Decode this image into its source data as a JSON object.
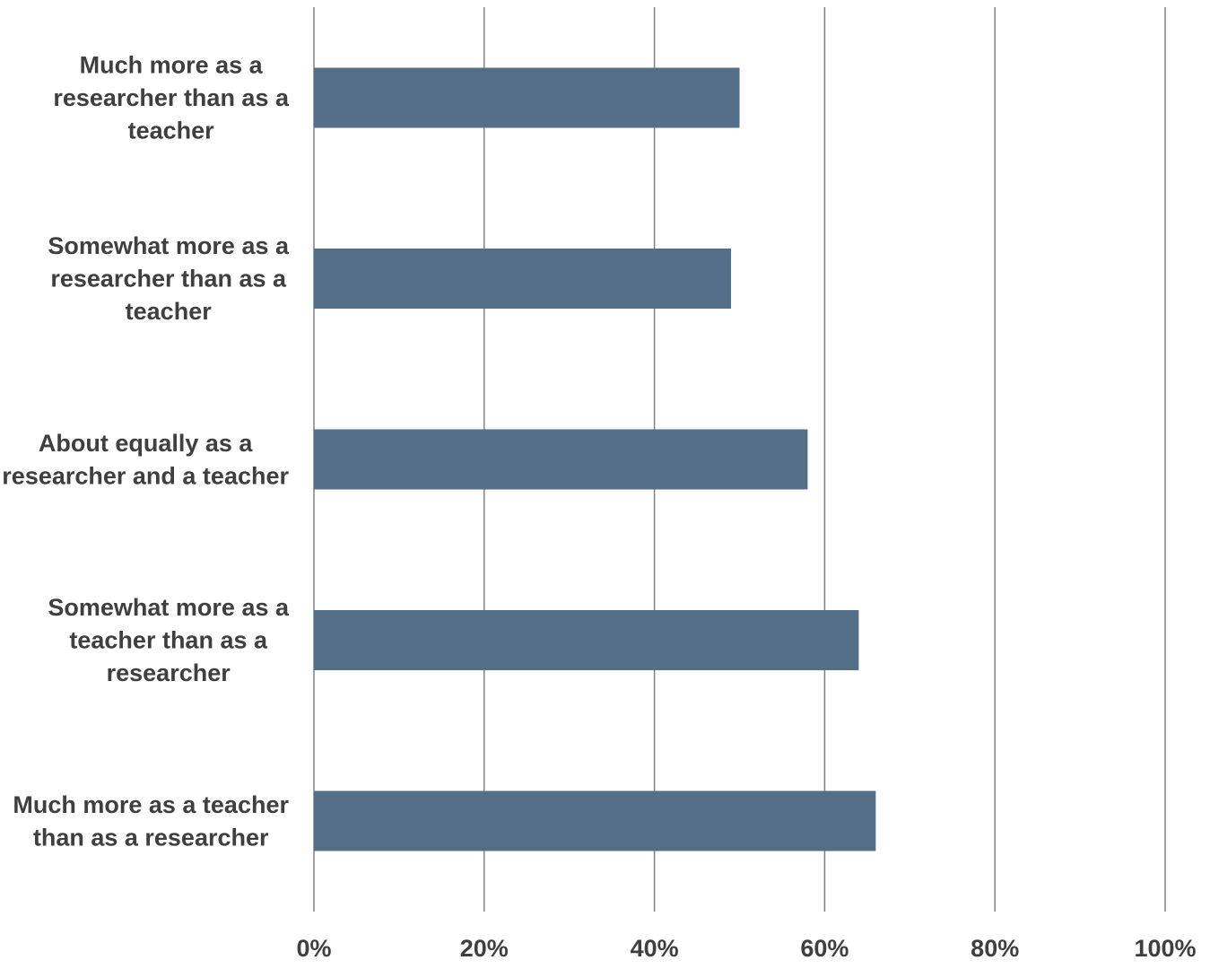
{
  "chart_data": {
    "type": "bar",
    "orientation": "horizontal",
    "categories": [
      "Much more as a researcher than as a teacher",
      "Somewhat more as a researcher than as a teacher",
      "About equally as a researcher and a teacher",
      "Somewhat more as a teacher than as a researcher",
      "Much more as a teacher than as a researcher"
    ],
    "category_label_lines": [
      [
        "Much more as a",
        "researcher than as a",
        "teacher"
      ],
      [
        "Somewhat more as a",
        "researcher than as a",
        "teacher"
      ],
      [
        "About equally as a",
        "researcher and a teacher"
      ],
      [
        "Somewhat more as a",
        "teacher than as a",
        "researcher"
      ],
      [
        "Much more as a teacher",
        "than as a researcher"
      ]
    ],
    "values": [
      0.5,
      0.49,
      0.58,
      0.64,
      0.66
    ],
    "xlim": [
      0,
      1
    ],
    "x_ticks": [
      0,
      0.2,
      0.4,
      0.6,
      0.8,
      1.0
    ],
    "x_tick_labels": [
      "0%",
      "20%",
      "40%",
      "60%",
      "80%",
      "100%"
    ],
    "title": "",
    "xlabel": "",
    "ylabel": "",
    "grid": "vertical",
    "legend": "none",
    "bar_color": "#546e88",
    "grid_color": "#808080",
    "text_color": "#3f3f3f"
  }
}
